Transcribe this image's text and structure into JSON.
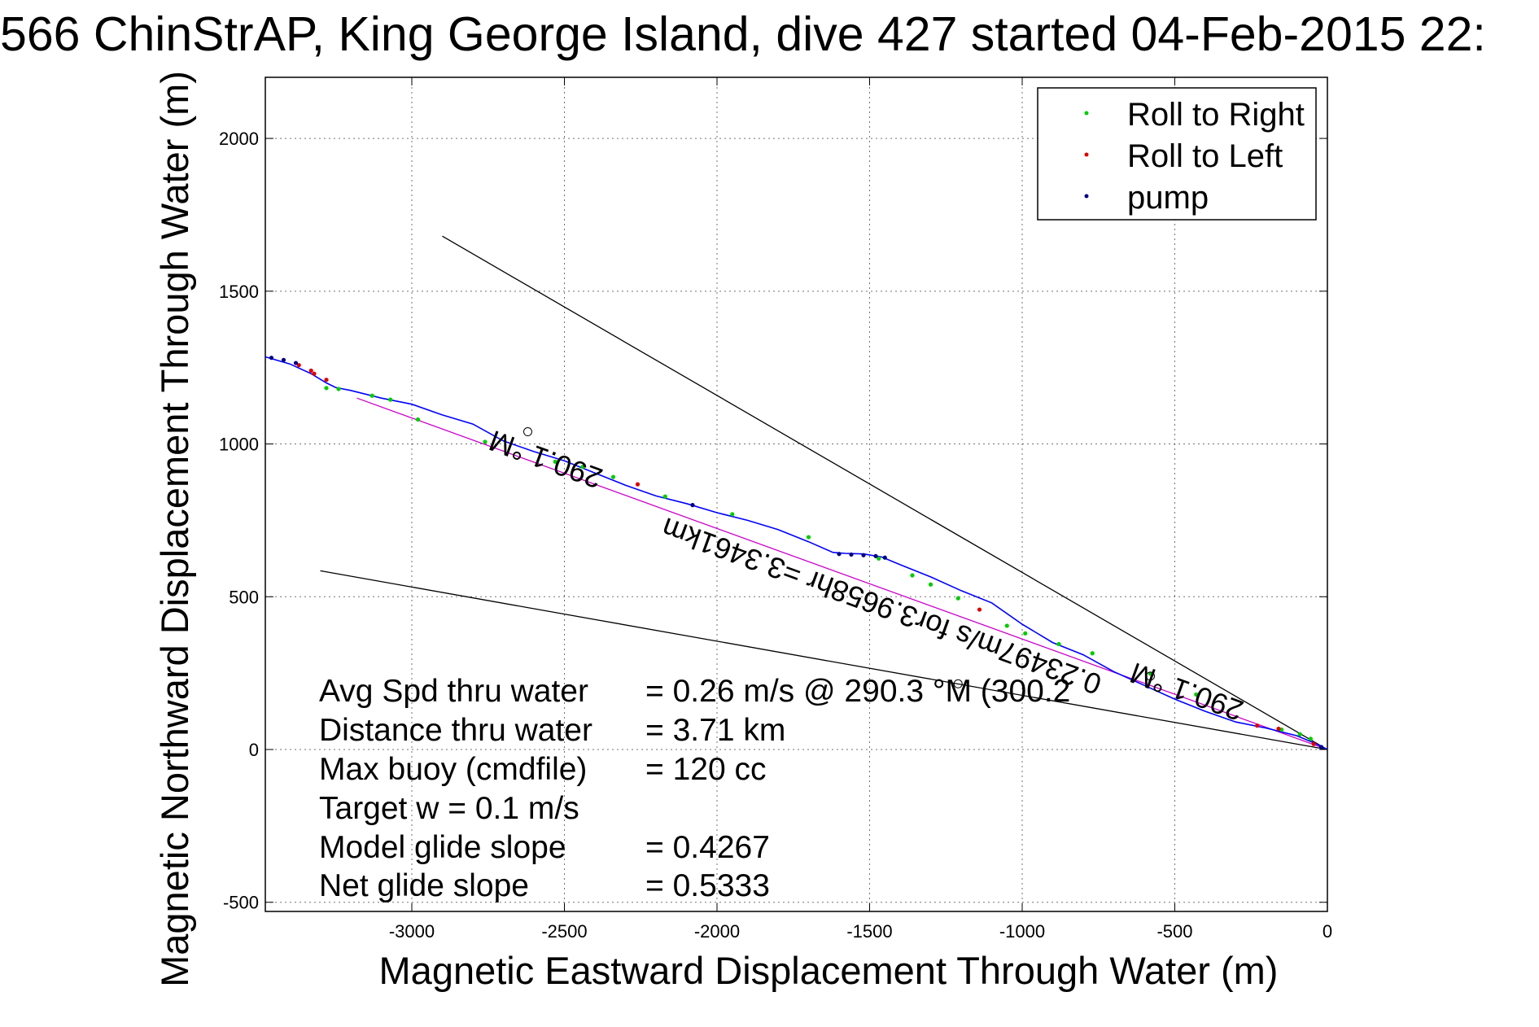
{
  "chart_data": {
    "type": "line",
    "title": "566 ChinStrAP, King George Island, dive 427 started 04-Feb-2015 22:",
    "xlabel": "Magnetic Eastward Displacement Through Water (m)",
    "ylabel": "Magnetic Northward Displacement Through Water (m)",
    "xlim": [
      -3480,
      0
    ],
    "ylim": [
      -530,
      2200
    ],
    "grid": true,
    "legend_position": "top-right",
    "x_ticks": [
      {
        "v": -3000,
        "label": "-3000"
      },
      {
        "v": -2500,
        "label": "-2500"
      },
      {
        "v": -2000,
        "label": "-2000"
      },
      {
        "v": -1500,
        "label": "-1500"
      },
      {
        "v": -1000,
        "label": "-1000"
      },
      {
        "v": -500,
        "label": "-500"
      },
      {
        "v": 0,
        "label": "0"
      }
    ],
    "y_ticks": [
      {
        "v": -500,
        "label": "-500"
      },
      {
        "v": 0,
        "label": "0"
      },
      {
        "v": 500,
        "label": "500"
      },
      {
        "v": 1000,
        "label": "1000"
      },
      {
        "v": 1500,
        "label": "1500"
      },
      {
        "v": 2000,
        "label": "2000"
      }
    ],
    "legend": [
      {
        "label": "Roll to Right",
        "color": "#00cc00"
      },
      {
        "label": "Roll to Left",
        "color": "#dd0000"
      },
      {
        "label": "pump",
        "color": "#000080"
      }
    ],
    "series": [
      {
        "name": "track",
        "color": "#0000ff",
        "x": [
          -3480,
          -3400,
          -3330,
          -3280,
          -3250,
          -3200,
          -3100,
          -3000,
          -2900,
          -2800,
          -2700,
          -2600,
          -2500,
          -2400,
          -2300,
          -2200,
          -2100,
          -2000,
          -1900,
          -1800,
          -1700,
          -1620,
          -1580,
          -1520,
          -1460,
          -1400,
          -1300,
          -1200,
          -1100,
          -1000,
          -900,
          -800,
          -700,
          -600,
          -500,
          -400,
          -300,
          -200,
          -100,
          -40,
          0
        ],
        "y": [
          1285,
          1262,
          1230,
          1200,
          1185,
          1175,
          1150,
          1130,
          1095,
          1065,
          1010,
          975,
          945,
          905,
          865,
          830,
          805,
          775,
          750,
          720,
          680,
          645,
          642,
          640,
          630,
          605,
          565,
          520,
          480,
          410,
          350,
          310,
          255,
          210,
          165,
          125,
          90,
          70,
          45,
          20,
          0
        ]
      },
      {
        "name": "fit",
        "color": "#cc00cc",
        "x": [
          -3180,
          0
        ],
        "y": [
          1150,
          0
        ]
      },
      {
        "name": "upper bound",
        "color": "#000000",
        "x": [
          -2900,
          0
        ],
        "y": [
          1680,
          0
        ]
      },
      {
        "name": "lower bound",
        "color": "#000000",
        "x": [
          -3300,
          0
        ],
        "y": [
          585,
          0
        ]
      }
    ],
    "markers": {
      "roll_right_x": [
        -3280,
        -3240,
        -3130,
        -3070,
        -2980,
        -2760,
        -2530,
        -2440,
        -2340,
        -2170,
        -1950,
        -1700,
        -1470,
        -1360,
        -1300,
        -1210,
        -1050,
        -990,
        -880,
        -770,
        -580,
        -430,
        -150,
        -90,
        -55
      ],
      "roll_right_y": [
        1183,
        1180,
        1158,
        1145,
        1080,
        1007,
        942,
        925,
        892,
        828,
        770,
        695,
        625,
        570,
        540,
        495,
        405,
        380,
        345,
        315,
        248,
        180,
        65,
        50,
        35
      ],
      "roll_left_x": [
        -3370,
        -3330,
        -3320,
        -3280,
        -2260,
        -1140,
        -230,
        -160,
        -45
      ],
      "roll_left_y": [
        1258,
        1240,
        1230,
        1210,
        868,
        458,
        78,
        68,
        18
      ],
      "pump_x": [
        -3460,
        -3420,
        -3380,
        -2080,
        -1600,
        -1560,
        -1520,
        -1480,
        -1450,
        -20
      ],
      "pump_y": [
        1282,
        1275,
        1265,
        800,
        640,
        638,
        636,
        633,
        628,
        8
      ]
    },
    "circles": {
      "x": [
        -2620,
        -580,
        -1210
      ],
      "y": [
        1040,
        240,
        215
      ]
    },
    "annotations": [
      {
        "text": "290.1 °M",
        "x": -2550,
        "y": 980,
        "rotation": 200
      },
      {
        "text": "0.23497m/s for3.9658hr =3.3461km",
        "x": -1450,
        "y": 500,
        "rotation": 200
      },
      {
        "text": "290.1 °M",
        "x": -450,
        "y": 220,
        "rotation": 200
      }
    ],
    "stats": [
      {
        "label": "Avg Spd thru water",
        "value": "=  0.26 m/s @ 290.3  °M (300.2"
      },
      {
        "label": "Distance thru water",
        "value": "=  3.71 km"
      },
      {
        "label": "Max buoy (cmdfile)",
        "value": "= 120 cc"
      },
      {
        "label": "Target w    = 0.1 m/s",
        "value": ""
      },
      {
        "label": "Model glide slope",
        "value": "= 0.4267"
      },
      {
        "label": "Net glide slope",
        "value": "= 0.5333"
      }
    ]
  }
}
